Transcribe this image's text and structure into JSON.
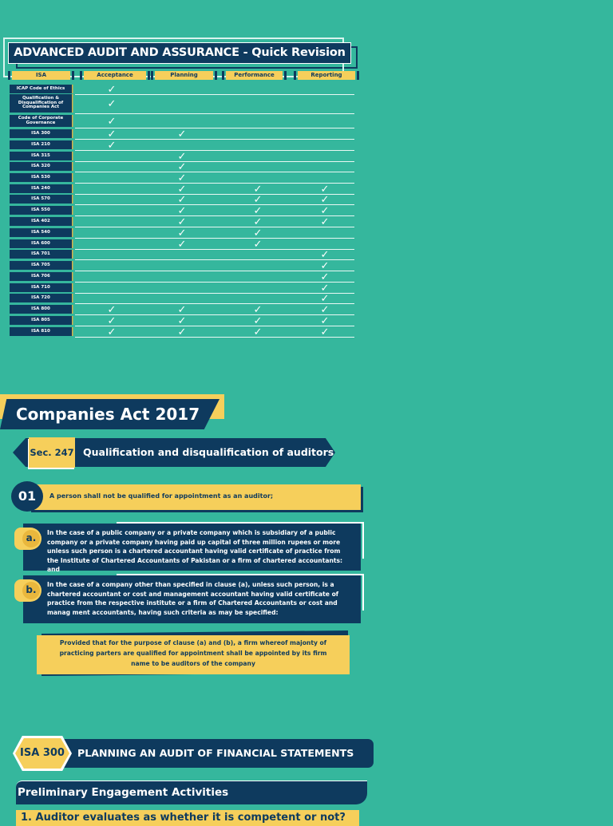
{
  "page": {
    "title": "ADVANCED AUDIT AND ASSURANCE - Quick Revision",
    "colors": {
      "background": "#35b79d",
      "navy": "#0e3a5e",
      "yellow": "#f6cf5b",
      "white": "#ffffff"
    }
  },
  "table": {
    "headers": [
      "ISA",
      "Acceptance",
      "Planning",
      "Performance",
      "Reporting"
    ],
    "check_icon": "✓",
    "rows": [
      {
        "label": "ICAP Code of Ethics",
        "acceptance": true,
        "planning": false,
        "performance": false,
        "reporting": false
      },
      {
        "label": "Qualification & Disqualification of Companies Act",
        "acceptance": true,
        "planning": false,
        "performance": false,
        "reporting": false
      },
      {
        "label": "Code of Corporate Governance",
        "acceptance": true,
        "planning": false,
        "performance": false,
        "reporting": false
      },
      {
        "label": "ISA 300",
        "acceptance": true,
        "planning": true,
        "performance": false,
        "reporting": false
      },
      {
        "label": "ISA 210",
        "acceptance": true,
        "planning": false,
        "performance": false,
        "reporting": false
      },
      {
        "label": "ISA 315",
        "acceptance": false,
        "planning": true,
        "performance": false,
        "reporting": false
      },
      {
        "label": "ISA 320",
        "acceptance": false,
        "planning": true,
        "performance": false,
        "reporting": false
      },
      {
        "label": "ISA 530",
        "acceptance": false,
        "planning": true,
        "performance": false,
        "reporting": false
      },
      {
        "label": "ISA 240",
        "acceptance": false,
        "planning": true,
        "performance": true,
        "reporting": true
      },
      {
        "label": "ISA 570",
        "acceptance": false,
        "planning": true,
        "performance": true,
        "reporting": true
      },
      {
        "label": "ISA 550",
        "acceptance": false,
        "planning": true,
        "performance": true,
        "reporting": true
      },
      {
        "label": "ISA 402",
        "acceptance": false,
        "planning": true,
        "performance": true,
        "reporting": true
      },
      {
        "label": "ISA 540",
        "acceptance": false,
        "planning": true,
        "performance": true,
        "reporting": false
      },
      {
        "label": "ISA 600",
        "acceptance": false,
        "planning": true,
        "performance": true,
        "reporting": false
      },
      {
        "label": "ISA 701",
        "acceptance": false,
        "planning": false,
        "performance": false,
        "reporting": true
      },
      {
        "label": "ISA 705",
        "acceptance": false,
        "planning": false,
        "performance": false,
        "reporting": true
      },
      {
        "label": "ISA 706",
        "acceptance": false,
        "planning": false,
        "performance": false,
        "reporting": true
      },
      {
        "label": "ISA 710",
        "acceptance": false,
        "planning": false,
        "performance": false,
        "reporting": true
      },
      {
        "label": "ISA 720",
        "acceptance": false,
        "planning": false,
        "performance": false,
        "reporting": true
      },
      {
        "label": "ISA 800",
        "acceptance": true,
        "planning": true,
        "performance": true,
        "reporting": true
      },
      {
        "label": "ISA 805",
        "acceptance": true,
        "planning": true,
        "performance": true,
        "reporting": true
      },
      {
        "label": "ISA 810",
        "acceptance": true,
        "planning": true,
        "performance": true,
        "reporting": true
      }
    ]
  },
  "companies_act": {
    "heading": "Companies Act 2017",
    "section": {
      "number": "Sec. 247",
      "title": "Qualification and disqualification of auditors"
    },
    "item": {
      "number": "01",
      "text": "A person shall not be qualified for appointment as an auditor;"
    },
    "clauses": [
      {
        "letter": "a.",
        "text": "In the case of a public company or a private company which is subsidiary of a public company or a private company having paid up capital of three million rupees or more unless such person is a chartered accountant having valid certificate of practice from the Institute of Chartered Accountants of Pakistan or a firm of chartered accountants: and"
      },
      {
        "letter": "b.",
        "text": "In the case of a company other than specified in clause (a), unless such person, is a chartered accountant or cost and management accountant having valid certificate of practice from the respective institute or a firm of Chartered Accountants or cost and manag ment accountants, having such criteria as may be specified:"
      }
    ],
    "proviso": "Provided that for the purpose of clause (a) and (b), a firm whereof majonty of practicing parters are qualified for appointment shall be appointed by its firm name to be auditors of the company"
  },
  "isa300": {
    "badge": "ISA 300",
    "title": "PLANNING AN AUDIT OF FINANCIAL STATEMENTS",
    "subheading": "Preliminary Engagement Activities",
    "points": [
      "1. Auditor evaluates as whether it is competent or not?"
    ]
  }
}
